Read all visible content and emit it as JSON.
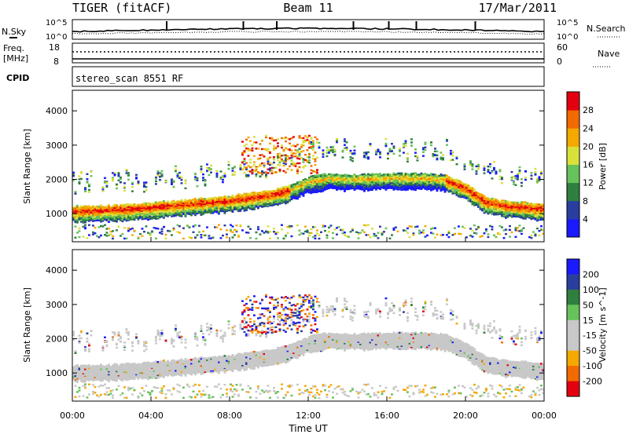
{
  "header": {
    "station": "TIGER (fitACF)",
    "beam": "Beam 11",
    "date": "17/Mar/2011"
  },
  "top_strip": {
    "nsky_label": "N.Sky",
    "nsky_ticks": [
      "10^5",
      "10^0"
    ],
    "nsearch_label": "N.Search",
    "nsearch_ticks": [
      "10^5",
      "10^0"
    ],
    "freq_label_1": "Freq.",
    "freq_label_2": "[MHz]",
    "freq_ticks": [
      "18",
      "8"
    ],
    "nave_label": "Nave",
    "nave_ticks": [
      "60",
      "0"
    ],
    "cpid_label": "CPID",
    "cpid_value": "stereo_scan 8551 RF"
  },
  "colors": {
    "power_scale": [
      "#1a1aff",
      "#2a3ea0",
      "#2f7f3f",
      "#66c25a",
      "#d9e03a",
      "#f5a800",
      "#f26a00",
      "#e3000f"
    ],
    "velocity_scale": [
      "#1a1aff",
      "#2a3ea0",
      "#2f7f3f",
      "#66c25a",
      "#c8c8c8",
      "#c8c8c8",
      "#f5a800",
      "#f26a00",
      "#e3000f"
    ]
  },
  "chart_data": [
    {
      "type": "heatmap",
      "panel": "power",
      "ylabel": "Slant Range [km]",
      "xlim": [
        "00:00",
        "24:00"
      ],
      "ylim": [
        180,
        4600
      ],
      "yticks": [
        "1000",
        "2000",
        "3000",
        "4000"
      ],
      "colorbar_label": "Power [dB]",
      "colorbar_ticks": [
        "4",
        "8",
        "12",
        "16",
        "20",
        "24",
        "28"
      ],
      "colorbar_range": [
        0,
        30
      ],
      "bands": [
        {
          "name": "main",
          "x": [
            0,
            2,
            4,
            6,
            7,
            8,
            9,
            10,
            11,
            12,
            13,
            14,
            16,
            18,
            19,
            20,
            21,
            22,
            23,
            24
          ],
          "y": [
            1100,
            1120,
            1200,
            1300,
            1350,
            1400,
            1480,
            1550,
            1700,
            1950,
            2050,
            2020,
            2050,
            2050,
            2000,
            1750,
            1350,
            1250,
            1200,
            1150
          ]
        }
      ]
    },
    {
      "type": "heatmap",
      "panel": "velocity",
      "ylabel": "Slant Range [km]",
      "xlabel": "Time UT",
      "xticks": [
        "00:00",
        "04:00",
        "08:00",
        "12:00",
        "16:00",
        "20:00",
        "00:00"
      ],
      "yticks": [
        "1000",
        "2000",
        "3000",
        "4000"
      ],
      "ylim": [
        180,
        4600
      ],
      "colorbar_label": "Velocity [m s^-1]",
      "colorbar_ticks": [
        "200",
        "100",
        "50",
        "15",
        "-15",
        "-50",
        "-100",
        "-200"
      ]
    }
  ]
}
